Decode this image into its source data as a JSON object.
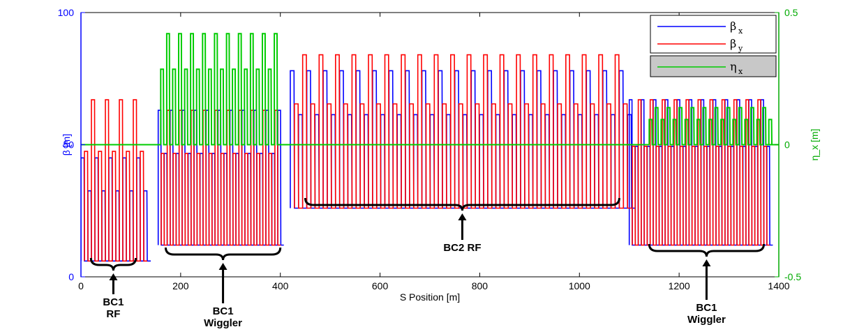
{
  "chart_data": {
    "type": "line",
    "title": "",
    "xlabel": "S Position [m]",
    "ylabel": "β [m]",
    "ylabel_right": "η_x [m]",
    "xlim": [
      0,
      1400
    ],
    "ylim": [
      0,
      100
    ],
    "ylim_right": [
      -0.5,
      0.5
    ],
    "x_ticks": [
      "0",
      "200",
      "400",
      "600",
      "800",
      "1000",
      "1200",
      "1400"
    ],
    "y_ticks": [
      "0",
      "50",
      "100"
    ],
    "y_ticks_right": [
      "-0.5",
      "0",
      "0.5"
    ],
    "grid": false,
    "legend_position": "top-right",
    "colors": {
      "beta_x": "#0000ff",
      "beta_y": "#ff0000",
      "eta_x": "#00cc00",
      "left_axis": "#0000ff",
      "right_axis": "#00aa00"
    },
    "series": [
      {
        "name": "βx",
        "axis": "left",
        "color": "#0000ff",
        "segments": [
          {
            "x_range": [
              0,
              130
            ],
            "min": 6,
            "max": 45,
            "period": 14
          },
          {
            "x_range": [
              155,
              395
            ],
            "min": 12,
            "max": 63,
            "period": 12
          },
          {
            "x_range": [
              420,
              1100
            ],
            "min": 26,
            "max": 78,
            "period": 16.5
          },
          {
            "x_range": [
              1100,
              1380
            ],
            "min": 12,
            "max": 67,
            "period": 12
          }
        ]
      },
      {
        "name": "βy",
        "axis": "left",
        "color": "#ff0000",
        "segments": [
          {
            "x_range": [
              0,
              130
            ],
            "min": 6,
            "max": 67,
            "period": 14
          },
          {
            "x_range": [
              155,
              395
            ],
            "min": 12,
            "max": 63,
            "period": 12
          },
          {
            "x_range": [
              420,
              1100
            ],
            "min": 26,
            "max": 84,
            "period": 16.5
          },
          {
            "x_range": [
              1100,
              1380
            ],
            "min": 12,
            "max": 67,
            "period": 12
          }
        ]
      },
      {
        "name": "ηx",
        "axis": "right",
        "color": "#00cc00",
        "segments": [
          {
            "x_range": [
              0,
              160
            ],
            "value": 0
          },
          {
            "x_range": [
              160,
              395
            ],
            "min": 0.0,
            "max": 0.42,
            "period": 12
          },
          {
            "x_range": [
              395,
              1140
            ],
            "value": 0
          },
          {
            "x_range": [
              1140,
              1380
            ],
            "min": 0.0,
            "max": 0.14,
            "period": 12
          },
          {
            "x_range": [
              1380,
              1400
            ],
            "value": 0
          }
        ]
      }
    ],
    "legend": [
      {
        "label": "β",
        "sub": "x"
      },
      {
        "label": "β",
        "sub": "y"
      },
      {
        "label": "η",
        "sub": "x"
      }
    ],
    "annotations": [
      {
        "lines": [
          "BC1",
          "RF"
        ],
        "x_range": [
          20,
          110
        ]
      },
      {
        "lines": [
          "BC1",
          "Wiggler"
        ],
        "x_range": [
          170,
          400
        ]
      },
      {
        "lines": [
          "BC2 RF"
        ],
        "x_range": [
          450,
          1080
        ]
      },
      {
        "lines": [
          "BC1",
          "Wiggler"
        ],
        "x_range": [
          1140,
          1370
        ]
      }
    ]
  }
}
